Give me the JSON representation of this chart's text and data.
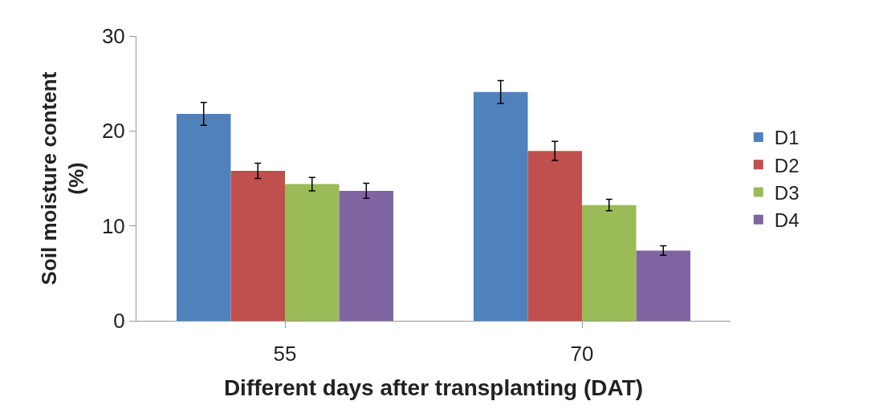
{
  "chart_data": {
    "type": "bar",
    "xlabel": "Different days after transplanting (DAT)",
    "ylabel": "Soil moisture content\n(%)",
    "categories": [
      "55",
      "70"
    ],
    "series": [
      {
        "name": "D1",
        "color": "#4f81bd",
        "values": [
          21.8,
          24.1
        ],
        "errors": [
          1.2,
          1.2
        ]
      },
      {
        "name": "D2",
        "color": "#c0504d",
        "values": [
          15.8,
          17.9
        ],
        "errors": [
          0.8,
          1.0
        ]
      },
      {
        "name": "D3",
        "color": "#9bbb59",
        "values": [
          14.4,
          12.2
        ],
        "errors": [
          0.7,
          0.6
        ]
      },
      {
        "name": "D4",
        "color": "#8064a2",
        "values": [
          13.7,
          7.4
        ],
        "errors": [
          0.8,
          0.5
        ]
      }
    ],
    "ylim": [
      0,
      30
    ],
    "yticks": [
      0,
      10,
      20,
      30
    ],
    "grid": false,
    "legend": "right"
  }
}
